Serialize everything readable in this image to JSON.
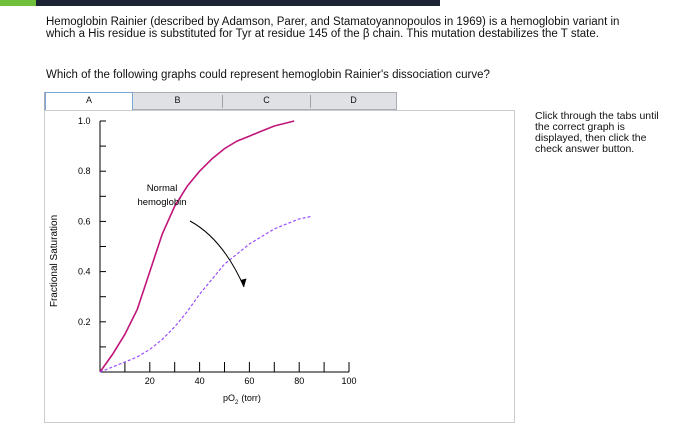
{
  "question": {
    "text": "Hemoglobin Rainier (described by Adamson, Parer, and Stamatoyannopoulos in 1969) is a hemoglobin variant in which a His residue is substituted for Tyr at residue 145 of the β chain. This mutation destabilizes the T state.",
    "prompt": "Which of the following graphs could represent hemoglobin Rainier's dissociation curve?"
  },
  "tabs": [
    {
      "label": "A",
      "active": true
    },
    {
      "label": "B",
      "active": false
    },
    {
      "label": "C",
      "active": false
    },
    {
      "label": "D",
      "active": false
    }
  ],
  "help_text": "Click through the tabs until the correct graph is displayed, then click the check answer button.",
  "chart_data": {
    "type": "line",
    "xlabel_main": "pO",
    "xlabel_sub": "2",
    "xlabel_unit": "(torr)",
    "ylabel": "Fractional Saturation",
    "xlim": [
      0,
      100
    ],
    "ylim": [
      0,
      1.0
    ],
    "x_ticks": [
      20,
      40,
      60,
      80,
      100
    ],
    "y_ticks": [
      0.2,
      0.4,
      0.6,
      0.8,
      1.0
    ],
    "annotation": [
      "Normal",
      "hemoglobin"
    ],
    "series": [
      {
        "style": "solid",
        "color": "#c0157a",
        "points": [
          [
            0,
            0
          ],
          [
            5,
            0.07
          ],
          [
            10,
            0.15
          ],
          [
            15,
            0.25
          ],
          [
            20,
            0.4
          ],
          [
            25,
            0.55
          ],
          [
            30,
            0.66
          ],
          [
            35,
            0.74
          ],
          [
            40,
            0.8
          ],
          [
            45,
            0.85
          ],
          [
            50,
            0.89
          ],
          [
            55,
            0.92
          ],
          [
            60,
            0.94
          ],
          [
            65,
            0.96
          ],
          [
            70,
            0.98
          ],
          [
            78,
            1.0
          ]
        ]
      },
      {
        "style": "dashed",
        "color": "#9b4dff",
        "points": [
          [
            0,
            0
          ],
          [
            5,
            0.02
          ],
          [
            10,
            0.04
          ],
          [
            15,
            0.06
          ],
          [
            20,
            0.09
          ],
          [
            25,
            0.13
          ],
          [
            30,
            0.18
          ],
          [
            35,
            0.24
          ],
          [
            40,
            0.31
          ],
          [
            45,
            0.37
          ],
          [
            50,
            0.43
          ],
          [
            55,
            0.47
          ],
          [
            60,
            0.51
          ],
          [
            65,
            0.54
          ],
          [
            70,
            0.57
          ],
          [
            75,
            0.59
          ],
          [
            80,
            0.61
          ],
          [
            85,
            0.62
          ]
        ]
      }
    ]
  }
}
